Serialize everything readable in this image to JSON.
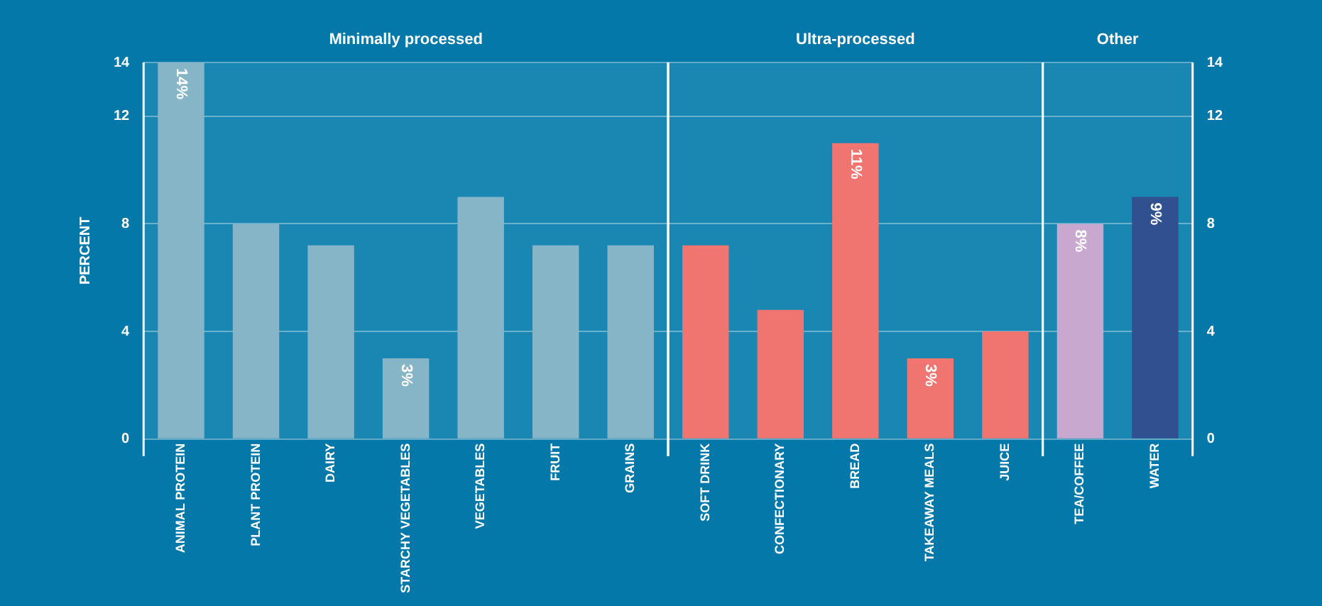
{
  "chart_data": {
    "type": "bar",
    "ylabel": "PERCENT",
    "categories": [
      "ANIMAL PROTEIN",
      "PLANT PROTEIN",
      "DAIRY",
      "STARCHY VEGETABLES",
      "VEGETABLES",
      "FRUIT",
      "GRAINS",
      "SOFT DRINK",
      "CONFECTIONARY",
      "BREAD",
      "TAKEAWAY MEALS",
      "JUICE",
      "TEA/COFFEE",
      "WATER"
    ],
    "values": [
      14,
      8,
      7.2,
      3,
      9,
      7.2,
      7.2,
      7.2,
      4.8,
      11,
      3,
      4,
      8,
      9
    ],
    "colors": [
      "#86b5c7",
      "#86b5c7",
      "#86b5c7",
      "#86b5c7",
      "#86b5c7",
      "#86b5c7",
      "#86b5c7",
      "#f07470",
      "#f07470",
      "#f07470",
      "#f07470",
      "#f07470",
      "#c9a8d0",
      "#30508f"
    ],
    "value_labels": [
      "14%",
      null,
      null,
      "3%",
      null,
      null,
      null,
      null,
      null,
      "11%",
      "3%",
      null,
      "8%",
      "9%"
    ],
    "ylim": [
      0,
      14
    ],
    "yticks": [
      0,
      4,
      8,
      12,
      14
    ],
    "y2lim": [
      0,
      14
    ],
    "y2ticks": [
      0,
      4,
      8,
      12,
      14
    ],
    "bands": [
      {
        "axis": "x",
        "from": "ANIMAL PROTEIN",
        "to": "GRAINS",
        "label": "Minimally processed",
        "color": "#1a86b2"
      },
      {
        "axis": "x",
        "from": "SOFT DRINK",
        "to": "JUICE",
        "label": "Ultra-processed",
        "color": "#1a86b2"
      },
      {
        "axis": "x",
        "from": "TEA/COFFEE",
        "to": "WATER",
        "label": "Other",
        "color": "#1a86b2"
      }
    ],
    "grid": "y",
    "legend": false
  }
}
